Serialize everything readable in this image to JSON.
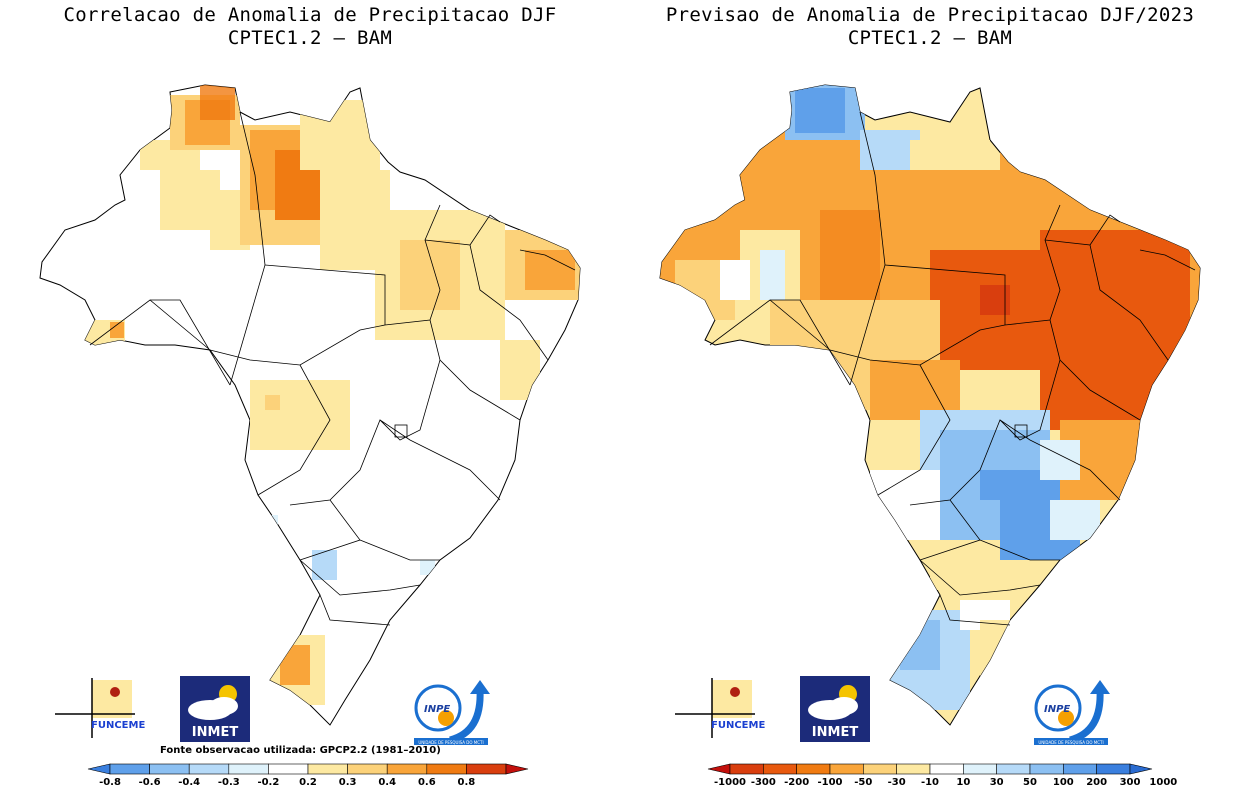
{
  "left_panel": {
    "title_line1": "Correlacao de Anomalia de Precipitacao DJF",
    "title_line2": "CPTEC1.2 – BAM",
    "source_note": "Fonte observacao utilizada: GPCP2.2 (1981–2010)",
    "colorbar": {
      "labels": [
        "-0.8",
        "-0.6",
        "-0.4",
        "-0.3",
        "-0.2",
        "0.2",
        "0.3",
        "0.4",
        "0.6",
        "0.8"
      ],
      "colors": [
        "#3a7fde",
        "#5fa0ea",
        "#8cc0f2",
        "#b6daf8",
        "#dff2fb",
        "#ffffff",
        "#fde9a2",
        "#fcd27a",
        "#f9a53a",
        "#f07b12",
        "#d93e0e",
        "#c3100c"
      ]
    }
  },
  "right_panel": {
    "title_line1": "Previsao de Anomalia de Precipitacao DJF/2023",
    "title_line2": "CPTEC1.2 – BAM",
    "colorbar": {
      "labels": [
        "-1000",
        "-300",
        "-200",
        "-100",
        "-50",
        "-30",
        "-10",
        "10",
        "30",
        "50",
        "100",
        "200",
        "300",
        "1000"
      ],
      "colors": [
        "#c3100c",
        "#d93e0e",
        "#e8590e",
        "#f07b12",
        "#f9a53a",
        "#fcd27a",
        "#fde9a2",
        "#ffffff",
        "#dff2fb",
        "#b6daf8",
        "#8cc0f2",
        "#5fa0ea",
        "#3a7fde",
        "#2a6bd0"
      ]
    }
  },
  "logos": {
    "funceme": "FUNCEME",
    "inmet": "INMET",
    "inpe": "INPE",
    "inpe_sub": "UNIDADE DE PESQUISA DO MCTI"
  },
  "palette": {
    "light_yellow": "#fde9a2",
    "yellow": "#fcd27a",
    "orange": "#f9a53a",
    "dark_orange": "#f07b12",
    "red_orange": "#e8590e",
    "light_blue": "#b6daf8",
    "mid_blue": "#8cc0f2",
    "blue": "#5fa0ea"
  }
}
